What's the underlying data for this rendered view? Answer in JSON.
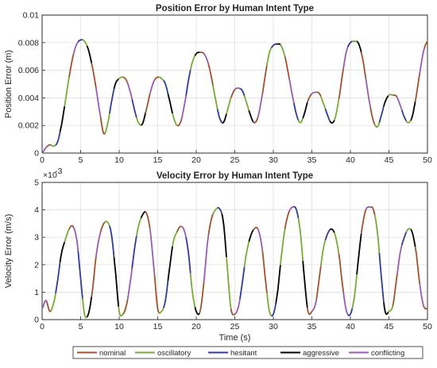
{
  "chart_data": [
    {
      "type": "line",
      "title": "Position Error by Human Intent Type",
      "xlabel": "",
      "ylabel": "Position Error (m)",
      "xlim": [
        0,
        50
      ],
      "ylim": [
        0,
        0.01
      ],
      "xticks": [
        "0",
        "5",
        "10",
        "15",
        "20",
        "25",
        "30",
        "35",
        "40",
        "45",
        "50"
      ],
      "yticks": [
        "0",
        "0.002",
        "0.004",
        "0.006",
        "0.008",
        "0.01"
      ],
      "grid": true,
      "x": [
        0,
        0.5,
        1,
        1.5,
        2,
        2.5,
        3,
        3.5,
        4,
        4.5,
        5,
        5.5,
        6,
        6.5,
        7,
        7.5,
        8,
        8.5,
        9,
        9.5,
        10,
        10.5,
        11,
        11.5,
        12,
        12.5,
        13,
        13.5,
        14,
        14.5,
        15,
        15.5,
        16,
        16.5,
        17,
        17.5,
        18,
        18.5,
        19,
        19.5,
        20,
        20.5,
        21,
        21.5,
        22,
        22.5,
        23,
        23.5,
        24,
        24.5,
        25,
        25.5,
        26,
        26.5,
        27,
        27.5,
        28,
        28.5,
        29,
        29.5,
        30,
        30.5,
        31,
        31.5,
        32,
        32.5,
        33,
        33.5,
        34,
        34.5,
        35,
        35.5,
        36,
        36.5,
        37,
        37.5,
        38,
        38.5,
        39,
        39.5,
        40,
        40.5,
        41,
        41.5,
        42,
        42.5,
        43,
        43.5,
        44,
        44.5,
        45,
        45.5,
        46,
        46.5,
        47,
        47.5,
        48,
        48.5,
        49,
        49.5,
        50
      ],
      "y": [
        0,
        0.0004,
        0.0006,
        0.0005,
        0.0008,
        0.002,
        0.0037,
        0.0055,
        0.007,
        0.0079,
        0.0082,
        0.0081,
        0.0075,
        0.0063,
        0.0047,
        0.0029,
        0.0014,
        0.0021,
        0.0037,
        0.005,
        0.0054,
        0.0055,
        0.0052,
        0.0043,
        0.0031,
        0.0022,
        0.0021,
        0.0031,
        0.0043,
        0.0052,
        0.0055,
        0.0054,
        0.005,
        0.0039,
        0.0027,
        0.002,
        0.0023,
        0.0036,
        0.0053,
        0.0066,
        0.0072,
        0.0073,
        0.0072,
        0.0066,
        0.0054,
        0.0039,
        0.0026,
        0.0022,
        0.003,
        0.004,
        0.0046,
        0.0047,
        0.0045,
        0.0037,
        0.0028,
        0.0022,
        0.0026,
        0.004,
        0.0058,
        0.0073,
        0.0078,
        0.0079,
        0.0078,
        0.007,
        0.0056,
        0.0041,
        0.0028,
        0.0022,
        0.0028,
        0.0038,
        0.0043,
        0.0044,
        0.0043,
        0.0036,
        0.0028,
        0.0022,
        0.0025,
        0.0039,
        0.0058,
        0.0074,
        0.008,
        0.0081,
        0.008,
        0.0071,
        0.0054,
        0.0036,
        0.0023,
        0.0019,
        0.0027,
        0.0037,
        0.0042,
        0.0042,
        0.0041,
        0.0034,
        0.0026,
        0.0022,
        0.0026,
        0.004,
        0.0058,
        0.0074,
        0.0081
      ]
    },
    {
      "type": "line",
      "title": "Velocity Error by Human Intent Type",
      "xlabel": "Time (s)",
      "ylabel": "Velocity Error (m/s)",
      "exponent_label": "×10",
      "exponent_value": "-3",
      "xlim": [
        0,
        50
      ],
      "ylim": [
        0,
        5
      ],
      "xticks": [
        "0",
        "5",
        "10",
        "15",
        "20",
        "25",
        "30",
        "35",
        "40",
        "45",
        "50"
      ],
      "yticks": [
        "0",
        "1",
        "2",
        "3",
        "4",
        "5"
      ],
      "grid": true,
      "x": [
        0,
        0.5,
        1,
        1.5,
        2,
        2.5,
        3,
        3.5,
        4,
        4.5,
        5,
        5.5,
        6,
        6.5,
        7,
        7.5,
        8,
        8.5,
        9,
        9.5,
        10,
        10.5,
        11,
        11.5,
        12,
        12.5,
        13,
        13.5,
        14,
        14.5,
        15,
        15.5,
        16,
        16.5,
        17,
        17.5,
        18,
        18.5,
        19,
        19.5,
        20,
        20.5,
        21,
        21.5,
        22,
        22.5,
        23,
        23.5,
        24,
        24.5,
        25,
        25.5,
        26,
        26.5,
        27,
        27.5,
        28,
        28.5,
        29,
        29.5,
        30,
        30.5,
        31,
        31.5,
        32,
        32.5,
        33,
        33.5,
        34,
        34.5,
        35,
        35.5,
        36,
        36.5,
        37,
        37.5,
        38,
        38.5,
        39,
        39.5,
        40,
        40.5,
        41,
        41.5,
        42,
        42.5,
        43,
        43.5,
        44,
        44.5,
        45,
        45.5,
        46,
        46.5,
        47,
        47.5,
        48,
        48.5,
        49,
        49.5,
        50
      ],
      "y": [
        0.4,
        0.7,
        0.3,
        0.6,
        1.4,
        2.4,
        2.9,
        3.3,
        3.4,
        2.9,
        1.5,
        0.2,
        0.2,
        1.0,
        2.3,
        3.1,
        3.5,
        3.55,
        3.1,
        1.8,
        0.3,
        0.2,
        0.6,
        1.5,
        2.6,
        3.4,
        3.8,
        3.9,
        3.3,
        1.9,
        0.4,
        0.3,
        0.7,
        1.8,
        2.8,
        3.2,
        3.4,
        3.2,
        2.4,
        1.0,
        0.3,
        0.3,
        1.4,
        2.9,
        3.7,
        4.0,
        4.05,
        3.6,
        2.0,
        0.4,
        0.2,
        0.5,
        1.4,
        2.4,
        3.0,
        3.3,
        3.3,
        2.7,
        1.4,
        0.3,
        0.2,
        0.9,
        2.2,
        3.3,
        3.9,
        4.1,
        4.0,
        3.2,
        1.6,
        0.3,
        0.3,
        0.6,
        1.6,
        2.6,
        3.1,
        3.3,
        3.1,
        2.4,
        1.2,
        0.3,
        0.2,
        0.8,
        2.1,
        3.3,
        4.0,
        4.1,
        4.0,
        3.2,
        1.6,
        0.3,
        0.3,
        0.5,
        1.5,
        2.5,
        3.0,
        3.3,
        3.2,
        2.5,
        1.3,
        0.5,
        0.4
      ]
    }
  ],
  "legend": {
    "placement": "bottom",
    "entries": [
      {
        "label": "nominal",
        "color": "#a0522d"
      },
      {
        "label": "oscillatory",
        "color": "#77ac30"
      },
      {
        "label": "hesitant",
        "color": "#2e3b9b"
      },
      {
        "label": "aggressive",
        "color": "#000000"
      },
      {
        "label": "conflicting",
        "color": "#9b59b6"
      }
    ]
  }
}
